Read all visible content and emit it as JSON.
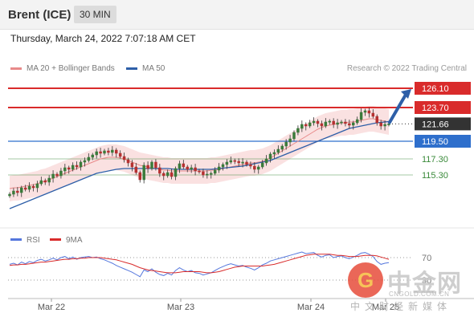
{
  "header": {
    "instrument": "Brent (ICE)",
    "timeframe": "30 MIN",
    "datetime": "Thursday, March 24, 2022 7:07:18 AM CET"
  },
  "legend": [
    {
      "label": "MA 20 + Bollinger Bands",
      "color": "#e88a8a"
    },
    {
      "label": "MA 50",
      "color": "#2e5fa8"
    }
  ],
  "credit": "Research © 2022 Trading Central",
  "watermark": {
    "title": "中金网",
    "url": "CNGOLD.COM.CN",
    "subtitle": "中文财经新媒体"
  },
  "colors": {
    "resistance": "#d92b2b",
    "pivot": "#333333",
    "support_main": "#2e6fcc",
    "support_minor": "#3a8a3a",
    "candle_up": "#3a7a3a",
    "candle_down": "#b53030",
    "bollinger_fill": "#f8d7d7",
    "ma20": "#e88a8a",
    "ma50": "#2e5fa8",
    "rsi": "#5577dd",
    "rsi_ma": "#d92b2b",
    "arrow": "#2e5fa8"
  },
  "chart_data": [
    {
      "type": "candlestick",
      "title": "Brent (ICE)",
      "timeframe": "30 MIN",
      "x_tick_labels": [
        "Mar 22",
        "Mar 23",
        "Mar 24",
        "Mar 25"
      ],
      "y_range": [
        110.3,
        127.6
      ],
      "levels": [
        {
          "value": 126.1,
          "label": "126.10",
          "kind": "resistance",
          "style": "solid"
        },
        {
          "value": 123.7,
          "label": "123.70",
          "kind": "resistance",
          "style": "solid"
        },
        {
          "value": 121.66,
          "label": "121.66",
          "kind": "last",
          "style": "dotted"
        },
        {
          "value": 119.5,
          "label": "119.50",
          "kind": "support",
          "style": "solid"
        },
        {
          "value": 117.3,
          "label": "117.30",
          "kind": "support2",
          "style": "solid"
        },
        {
          "value": 115.3,
          "label": "115.30",
          "kind": "support2",
          "style": "solid"
        }
      ],
      "forecast_arrow": {
        "from": 121.66,
        "to": 126.1
      },
      "series": [
        {
          "name": "Price",
          "values": [
            112.9,
            113.3,
            113.1,
            113.7,
            113.5,
            113.9,
            113.7,
            114.2,
            114.6,
            114.4,
            114.9,
            115.4,
            115.2,
            115.8,
            116.2,
            116.0,
            116.5,
            116.3,
            116.9,
            117.1,
            117.5,
            117.8,
            118.2,
            118.0,
            118.3,
            118.1,
            118.4,
            118.0,
            117.6,
            117.2,
            116.8,
            116.3,
            115.6,
            114.7,
            116.5,
            116.1,
            116.9,
            116.2,
            115.5,
            115.2,
            115.6,
            115.1,
            116.1,
            116.7,
            116.3,
            116.0,
            116.2,
            115.8,
            115.7,
            115.3,
            115.4,
            115.5,
            115.9,
            116.3,
            116.6,
            116.9,
            117.1,
            117.0,
            116.8,
            116.9,
            116.6,
            116.4,
            116.0,
            116.3,
            116.8,
            117.3,
            117.9,
            118.1,
            118.5,
            118.9,
            119.4,
            119.8,
            120.6,
            121.1,
            121.6,
            121.4,
            121.8,
            122.0,
            121.7,
            121.4,
            121.9,
            122.0,
            121.6,
            121.8,
            121.9,
            121.7,
            121.5,
            121.8,
            122.2,
            123.1,
            123.3,
            123.0,
            122.6,
            121.8,
            121.4,
            121.6,
            121.66
          ]
        },
        {
          "name": "MA 20",
          "values": [
            113.6,
            113.7,
            113.7,
            113.8,
            113.9,
            114.0,
            114.1,
            114.2,
            114.4,
            114.5,
            114.7,
            114.9,
            115.1,
            115.3,
            115.5,
            115.7,
            115.9,
            116.1,
            116.3,
            116.5,
            116.7,
            116.9,
            117.1,
            117.3,
            117.4,
            117.5,
            117.5,
            117.5,
            117.4,
            117.3,
            117.1,
            116.9,
            116.7,
            116.5,
            116.4,
            116.3,
            116.2,
            116.1,
            116.0,
            115.9,
            115.9,
            115.8,
            115.8,
            115.8,
            115.8,
            115.8,
            115.8,
            115.8,
            115.8,
            115.8,
            115.8,
            115.9,
            115.9,
            116.0,
            116.1,
            116.2,
            116.3,
            116.4,
            116.5,
            116.6,
            116.7,
            116.8,
            116.8,
            116.9,
            117.0,
            117.2,
            117.4,
            117.7,
            118.0,
            118.3,
            118.6,
            118.9,
            119.2,
            119.5,
            119.8,
            120.1,
            120.4,
            120.7,
            121.0,
            121.2,
            121.4,
            121.5,
            121.6,
            121.7,
            121.8,
            121.8,
            121.9,
            121.9,
            122.0,
            122.1,
            122.2,
            122.3,
            122.3,
            122.2,
            122.1,
            122.0,
            121.9
          ]
        },
        {
          "name": "MA 50",
          "values": [
            111.1,
            111.3,
            111.5,
            111.7,
            111.9,
            112.1,
            112.3,
            112.5,
            112.7,
            112.9,
            113.1,
            113.3,
            113.5,
            113.7,
            113.9,
            114.1,
            114.3,
            114.5,
            114.7,
            114.9,
            115.1,
            115.3,
            115.5,
            115.6,
            115.7,
            115.8,
            115.9,
            116.0,
            116.05,
            116.1,
            116.1,
            116.1,
            116.1,
            116.1,
            116.1,
            116.1,
            116.1,
            116.1,
            116.1,
            116.1,
            116.1,
            116.05,
            116.0,
            116.0,
            116.0,
            116.0,
            116.0,
            116.0,
            116.0,
            116.0,
            116.0,
            116.0,
            116.05,
            116.1,
            116.15,
            116.2,
            116.25,
            116.3,
            116.35,
            116.4,
            116.5,
            116.6,
            116.7,
            116.8,
            116.9,
            117.0,
            117.1,
            117.3,
            117.5,
            117.7,
            117.9,
            118.1,
            118.3,
            118.5,
            118.7,
            118.9,
            119.1,
            119.3,
            119.5,
            119.7,
            119.9,
            120.1,
            120.3,
            120.5,
            120.7,
            120.9,
            121.1,
            121.2,
            121.3,
            121.4,
            121.5,
            121.6,
            121.7,
            121.8,
            121.85,
            121.9,
            121.95
          ]
        }
      ]
    },
    {
      "type": "line",
      "title": "RSI",
      "y_range": [
        0,
        100
      ],
      "levels": [
        {
          "value": 70,
          "label": "70"
        },
        {
          "value": 30,
          "label": "30"
        }
      ],
      "series": [
        {
          "name": "RSI",
          "values": [
            58,
            60,
            57,
            62,
            59,
            63,
            61,
            65,
            67,
            64,
            66,
            69,
            66,
            70,
            72,
            68,
            71,
            67,
            70,
            71,
            72,
            70,
            71,
            68,
            66,
            63,
            60,
            56,
            53,
            50,
            47,
            44,
            40,
            36,
            48,
            45,
            50,
            44,
            40,
            38,
            42,
            39,
            47,
            52,
            48,
            45,
            47,
            43,
            42,
            39,
            41,
            43,
            47,
            51,
            54,
            57,
            59,
            57,
            55,
            56,
            53,
            51,
            48,
            52,
            57,
            60,
            64,
            66,
            68,
            70,
            72,
            74,
            76,
            78,
            80,
            77,
            78,
            79,
            74,
            71,
            74,
            75,
            70,
            72,
            73,
            70,
            68,
            71,
            74,
            78,
            79,
            76,
            72,
            63,
            58,
            60,
            61
          ]
        },
        {
          "name": "9MA",
          "values": [
            56,
            57,
            57,
            58,
            58,
            59,
            60,
            61,
            62,
            62,
            63,
            64,
            65,
            66,
            67,
            67,
            68,
            68,
            69,
            69,
            70,
            70,
            70,
            70,
            69,
            68,
            67,
            66,
            64,
            62,
            60,
            58,
            55,
            52,
            50,
            48,
            47,
            46,
            45,
            44,
            43,
            43,
            43,
            44,
            45,
            45,
            45,
            45,
            45,
            44,
            43,
            43,
            44,
            45,
            47,
            49,
            51,
            53,
            54,
            55,
            55,
            55,
            55,
            55,
            55,
            56,
            57,
            58,
            60,
            62,
            64,
            66,
            68,
            70,
            72,
            74,
            75,
            76,
            76,
            76,
            76,
            76,
            75,
            74,
            74,
            73,
            72,
            72,
            72,
            73,
            74,
            74,
            74,
            73,
            71,
            69,
            67
          ]
        }
      ]
    }
  ]
}
